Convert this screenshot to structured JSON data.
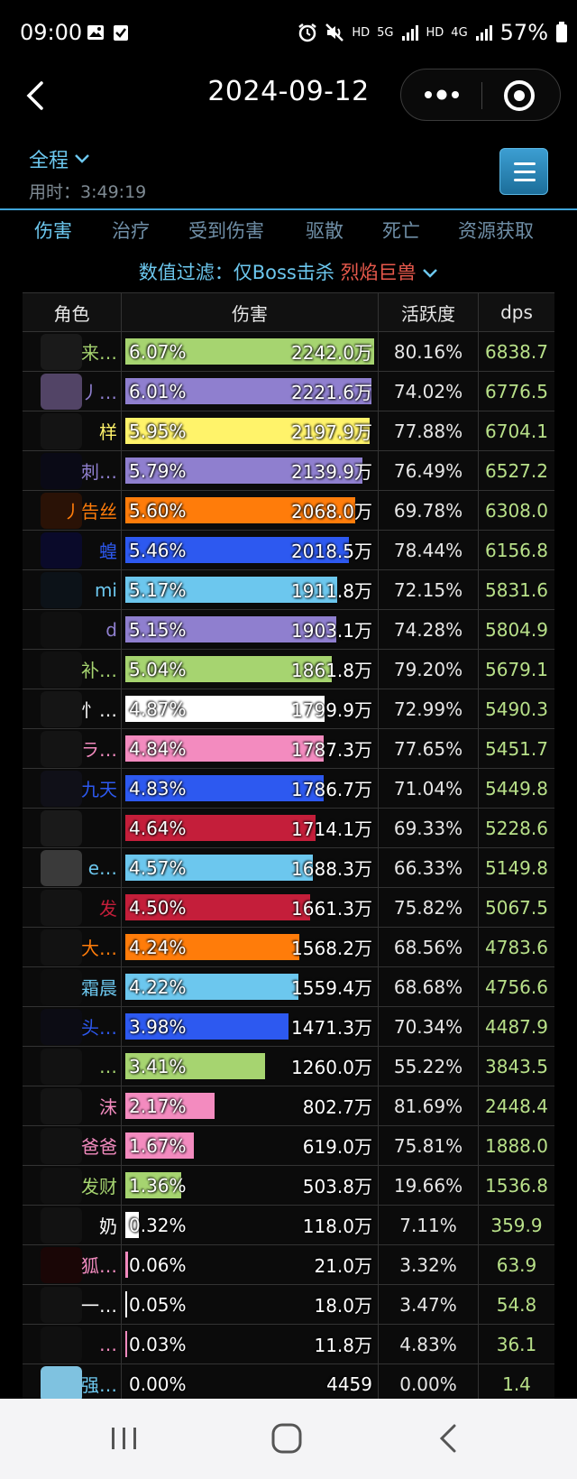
{
  "status": {
    "time": "09:00",
    "net_labels": [
      "HD",
      "5G",
      "HD",
      "4G"
    ],
    "battery": "57%"
  },
  "nav": {
    "title": "2024-09-12"
  },
  "header": {
    "phase": "全程",
    "elapsed": "用时：3:49:19"
  },
  "tabs": [
    {
      "label": "伤害",
      "active": true
    },
    {
      "label": "治疗"
    },
    {
      "label": "受到伤害"
    },
    {
      "label": "驱散"
    },
    {
      "label": "死亡"
    },
    {
      "label": "资源获取"
    }
  ],
  "filter": {
    "label": "数值过滤：仅Boss击杀",
    "value": "烈焰巨兽"
  },
  "table": {
    "headers": {
      "name": "角色",
      "damage": "伤害",
      "activity": "活跃度",
      "dps": "dps"
    },
    "rows": [
      {
        "name": "来…",
        "name_color": "#a6d470",
        "blob": "#1a1a1a",
        "pct": "6.07%",
        "share": 6.07,
        "value": "2242.0万",
        "bar_color": "#a6d470",
        "activity": "80.16%",
        "dps": "6838.7"
      },
      {
        "name": "丿…",
        "name_color": "#8f7fcf",
        "blob": "#524466",
        "pct": "6.01%",
        "share": 6.01,
        "value": "2221.6万",
        "bar_color": "#8f7fcf",
        "activity": "74.02%",
        "dps": "6776.5"
      },
      {
        "name": "样",
        "name_color": "#fff36a",
        "blob": "#141414",
        "pct": "5.95%",
        "share": 5.95,
        "value": "2197.9万",
        "bar_color": "#fff36a",
        "activity": "77.88%",
        "dps": "6704.1"
      },
      {
        "name": "刺…",
        "name_color": "#8f7fcf",
        "blob": "#0a0a16",
        "pct": "5.79%",
        "share": 5.79,
        "value": "2139.9万",
        "bar_color": "#8f7fcf",
        "activity": "76.49%",
        "dps": "6527.2"
      },
      {
        "name": "丿告丝",
        "name_color": "#ff7c0a",
        "blob": "#2a1206",
        "pct": "5.60%",
        "share": 5.6,
        "value": "2068.0万",
        "bar_color": "#ff7c0a",
        "activity": "69.78%",
        "dps": "6308.0"
      },
      {
        "name": "蝗",
        "name_color": "#2d59f0",
        "blob": "#0a0a2a",
        "pct": "5.46%",
        "share": 5.46,
        "value": "2018.5万",
        "bar_color": "#2d59f0",
        "activity": "78.44%",
        "dps": "6156.8"
      },
      {
        "name": "mi",
        "name_color": "#6cc7ee",
        "blob": "#0c1218",
        "pct": "5.17%",
        "share": 5.17,
        "value": "1911.8万",
        "bar_color": "#6cc7ee",
        "activity": "72.15%",
        "dps": "5831.6"
      },
      {
        "name": "d",
        "name_color": "#8f7fcf",
        "blob": "#101010",
        "pct": "5.15%",
        "share": 5.15,
        "value": "1903.1万",
        "bar_color": "#8f7fcf",
        "activity": "74.28%",
        "dps": "5804.9"
      },
      {
        "name": "补…",
        "name_color": "#a6d470",
        "blob": "#111111",
        "pct": "5.04%",
        "share": 5.04,
        "value": "1861.8万",
        "bar_color": "#a6d470",
        "activity": "79.20%",
        "dps": "5679.1"
      },
      {
        "name": "忄…",
        "name_color": "#ffffff",
        "blob": "#151515",
        "pct": "4.87%",
        "share": 4.87,
        "value": "1799.9万",
        "bar_color": "#ffffff",
        "activity": "72.99%",
        "dps": "5490.3"
      },
      {
        "name": "ラ…",
        "name_color": "#f38bbf",
        "blob": "#141414",
        "pct": "4.84%",
        "share": 4.84,
        "value": "1787.3万",
        "bar_color": "#f38bbf",
        "activity": "77.65%",
        "dps": "5451.7"
      },
      {
        "name": "九天",
        "name_color": "#2d59f0",
        "blob": "#101018",
        "pct": "4.83%",
        "share": 4.83,
        "value": "1786.7万",
        "bar_color": "#2d59f0",
        "activity": "71.04%",
        "dps": "5449.8"
      },
      {
        "name": "",
        "name_color": "#c41e3a",
        "blob": "#1a1a1a",
        "pct": "4.64%",
        "share": 4.64,
        "value": "1714.1万",
        "bar_color": "#c41e3a",
        "activity": "69.33%",
        "dps": "5228.6"
      },
      {
        "name": "e…",
        "name_color": "#6cc7ee",
        "blob": "#3a3a3a",
        "pct": "4.57%",
        "share": 4.57,
        "value": "1688.3万",
        "bar_color": "#6cc7ee",
        "activity": "66.33%",
        "dps": "5149.8"
      },
      {
        "name": "发",
        "name_color": "#c41e3a",
        "blob": "#141414",
        "pct": "4.50%",
        "share": 4.5,
        "value": "1661.3万",
        "bar_color": "#c41e3a",
        "activity": "75.82%",
        "dps": "5067.5"
      },
      {
        "name": "大…",
        "name_color": "#ff7c0a",
        "blob": "#121212",
        "pct": "4.24%",
        "share": 4.24,
        "value": "1568.2万",
        "bar_color": "#ff7c0a",
        "activity": "68.56%",
        "dps": "4783.6"
      },
      {
        "name": "霜晨",
        "name_color": "#6cc7ee",
        "blob": "#0e0e0e",
        "pct": "4.22%",
        "share": 4.22,
        "value": "1559.4万",
        "bar_color": "#6cc7ee",
        "activity": "68.68%",
        "dps": "4756.6"
      },
      {
        "name": "头…",
        "name_color": "#2d59f0",
        "blob": "#0c0c14",
        "pct": "3.98%",
        "share": 3.98,
        "value": "1471.3万",
        "bar_color": "#2d59f0",
        "activity": "70.34%",
        "dps": "4487.9"
      },
      {
        "name": "…",
        "name_color": "#a6d470",
        "blob": "#121212",
        "pct": "3.41%",
        "share": 3.41,
        "value": "1260.0万",
        "bar_color": "#a6d470",
        "activity": "55.22%",
        "dps": "3843.5"
      },
      {
        "name": "沫",
        "name_color": "#f38bbf",
        "blob": "#141414",
        "pct": "2.17%",
        "share": 2.17,
        "value": "802.7万",
        "bar_color": "#f38bbf",
        "activity": "81.69%",
        "dps": "2448.4"
      },
      {
        "name": "爸爸",
        "name_color": "#f38bbf",
        "blob": "#121212",
        "pct": "1.67%",
        "share": 1.67,
        "value": "619.0万",
        "bar_color": "#f38bbf",
        "activity": "75.81%",
        "dps": "1888.0"
      },
      {
        "name": "发财",
        "name_color": "#a6d470",
        "blob": "#101010",
        "pct": "1.36%",
        "share": 1.36,
        "value": "503.8万",
        "bar_color": "#a6d470",
        "activity": "19.66%",
        "dps": "1536.8"
      },
      {
        "name": "奶",
        "name_color": "#ffffff",
        "blob": "#121212",
        "pct": "0.32%",
        "share": 0.32,
        "value": "118.0万",
        "bar_color": "#ffffff",
        "activity": "7.11%",
        "dps": "359.9"
      },
      {
        "name": "狐…",
        "name_color": "#f38bbf",
        "blob": "#1a0606",
        "pct": "0.06%",
        "share": 0.06,
        "value": "21.0万",
        "bar_color": "#f38bbf",
        "activity": "3.32%",
        "dps": "63.9"
      },
      {
        "name": "一…",
        "name_color": "#ffffff",
        "blob": "#121212",
        "pct": "0.05%",
        "share": 0.05,
        "value": "18.0万",
        "bar_color": "#ffffff",
        "activity": "3.47%",
        "dps": "54.8"
      },
      {
        "name": "…",
        "name_color": "#f38bbf",
        "blob": "#101010",
        "pct": "0.03%",
        "share": 0.03,
        "value": "11.8万",
        "bar_color": "#f38bbf",
        "activity": "4.83%",
        "dps": "36.1"
      },
      {
        "name": "强…",
        "name_color": "#6cc7ee",
        "blob": "#7fc2e0",
        "pct": "0.00%",
        "share": 0.0,
        "value": "4459",
        "bar_color": "#6cc7ee",
        "activity": "0.00%",
        "dps": "1.4"
      }
    ]
  }
}
